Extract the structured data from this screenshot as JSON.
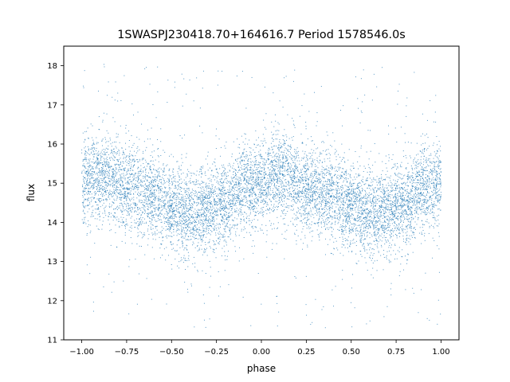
{
  "chart_data": {
    "type": "scatter",
    "title": "1SWASPJ230418.70+164616.7 Period 1578546.0s",
    "xlabel": "phase",
    "ylabel": "flux",
    "xlim": [
      -1.1,
      1.1
    ],
    "ylim": [
      11.0,
      18.5
    ],
    "xticks": [
      -1.0,
      -0.75,
      -0.5,
      -0.25,
      0.0,
      0.25,
      0.5,
      0.75,
      1.0
    ],
    "xtick_labels": [
      "−1.00",
      "−0.75",
      "−0.50",
      "−0.25",
      "0.00",
      "0.25",
      "0.50",
      "0.75",
      "1.00"
    ],
    "yticks": [
      11,
      12,
      13,
      14,
      15,
      16,
      17,
      18
    ],
    "ytick_labels": [
      "11",
      "12",
      "13",
      "14",
      "15",
      "16",
      "17",
      "18"
    ],
    "grid": false,
    "marker_color": "#1f77b4",
    "trend_curve": {
      "x": [
        -1.0,
        -0.9,
        -0.75,
        -0.6,
        -0.5,
        -0.4,
        -0.3,
        -0.2,
        -0.1,
        0.0,
        0.1,
        0.25,
        0.4,
        0.5,
        0.6,
        0.7,
        0.8,
        0.9,
        1.0
      ],
      "y": [
        15.0,
        15.2,
        14.9,
        14.7,
        14.4,
        14.2,
        14.3,
        14.5,
        14.9,
        15.0,
        15.2,
        14.9,
        14.7,
        14.4,
        14.2,
        14.3,
        14.5,
        14.9,
        15.0
      ],
      "scatter_sigma": 0.55,
      "n_points": 9000,
      "outlier_fraction": 0.04,
      "note_range": [
        11.3,
        18.1
      ]
    }
  }
}
